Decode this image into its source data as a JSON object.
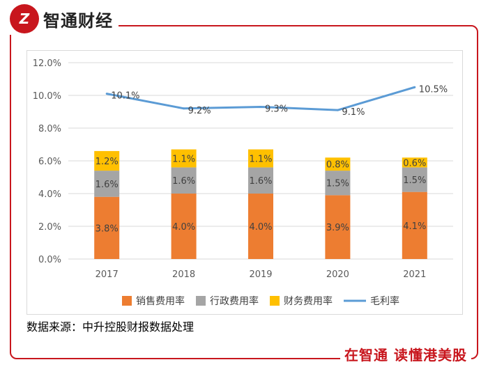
{
  "brand": {
    "logo_name": "zhitong-logo-icon",
    "logo_glyph": "Z",
    "name": "智通财经",
    "slogan": "在智通  读懂港美股",
    "accent": "#c8161d"
  },
  "source": "数据来源：中升控股财报数据处理",
  "chart_data": {
    "type": "bar",
    "stacked": true,
    "categories": [
      "2017",
      "2018",
      "2019",
      "2020",
      "2021"
    ],
    "ylim": [
      0,
      12
    ],
    "yticks": [
      0,
      2,
      4,
      6,
      8,
      10,
      12
    ],
    "ytick_labels": [
      "0.0%",
      "2.0%",
      "4.0%",
      "6.0%",
      "8.0%",
      "10.0%",
      "12.0%"
    ],
    "grid": true,
    "legend_position": "bottom",
    "series": [
      {
        "name": "销售费用率",
        "kind": "bar",
        "color": "#ed7d31",
        "values": [
          3.8,
          4.0,
          4.0,
          3.9,
          4.1
        ],
        "labels": [
          "3.8%",
          "4.0%",
          "4.0%",
          "3.9%",
          "4.1%"
        ]
      },
      {
        "name": "行政费用率",
        "kind": "bar",
        "color": "#a5a5a5",
        "values": [
          1.6,
          1.6,
          1.6,
          1.5,
          1.5
        ],
        "labels": [
          "1.6%",
          "1.6%",
          "1.6%",
          "1.5%",
          "1.5%"
        ]
      },
      {
        "name": "财务费用率",
        "kind": "bar",
        "color": "#ffc000",
        "values": [
          1.2,
          1.1,
          1.1,
          0.8,
          0.6
        ],
        "labels": [
          "1.2%",
          "1.1%",
          "1.1%",
          "0.8%",
          "0.6%"
        ]
      },
      {
        "name": "毛利率",
        "kind": "line",
        "color": "#5b9bd5",
        "values": [
          10.1,
          9.2,
          9.3,
          9.1,
          10.5
        ],
        "labels": [
          "10.1%",
          "9.2%",
          "9.3%",
          "9.1%",
          "10.5%"
        ]
      }
    ]
  }
}
